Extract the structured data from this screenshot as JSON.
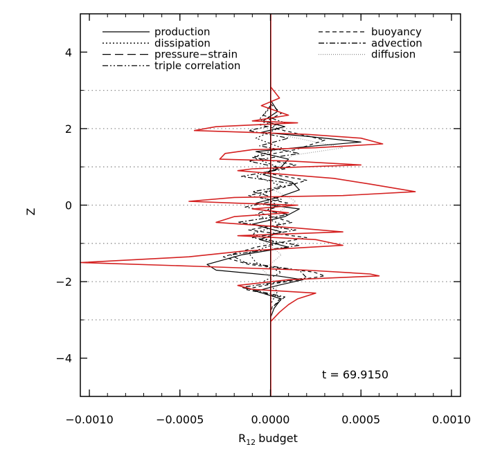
{
  "chart_data": {
    "type": "line",
    "title": "",
    "xlabel": "budget",
    "xlabel_prefix": "R",
    "xlabel_subscript": "12",
    "ylabel": "Z",
    "xlim": [
      -0.00105,
      0.00105
    ],
    "ylim": [
      -5,
      5
    ],
    "x_ticks": [
      -0.001,
      -0.0005,
      0.0,
      0.0005,
      0.001
    ],
    "x_tick_labels": [
      "−0.0010",
      "−0.0005",
      "0.0000",
      "0.0005",
      "0.0010"
    ],
    "y_ticks": [
      -4,
      -2,
      0,
      2,
      4
    ],
    "y_tick_labels": [
      "−4",
      "−2",
      "0",
      "2",
      "4"
    ],
    "reference_lines_y": [
      -3,
      -2,
      -1,
      0,
      1,
      2,
      3
    ],
    "annotation": "t = 69.9150",
    "legend_placement": "top",
    "legend": [
      {
        "label": "production",
        "style": "solid"
      },
      {
        "label": "dissipation",
        "style": "dotted"
      },
      {
        "label": "pressure−strain",
        "style": "longdash"
      },
      {
        "label": "triple correlation",
        "style": "dashdotdot"
      },
      {
        "label": "buoyancy",
        "style": "dashed"
      },
      {
        "label": "advection",
        "style": "dashdot"
      },
      {
        "label": "diffusion",
        "style": "finedot"
      }
    ],
    "total_color": "#d42020",
    "series": [
      {
        "name": "",
        "color": "#d42020",
        "points": [
          [
            0.0,
            3.1
          ],
          [
            5e-05,
            2.8
          ],
          [
            -5e-05,
            2.6
          ],
          [
            0.0001,
            2.35
          ],
          [
            -0.0001,
            2.2
          ],
          [
            0.00015,
            2.15
          ],
          [
            -0.0003,
            2.05
          ],
          [
            -0.00042,
            1.95
          ],
          [
            -0.0001,
            1.9
          ],
          [
            0.0002,
            1.85
          ],
          [
            0.0005,
            1.75
          ],
          [
            0.00062,
            1.6
          ],
          [
            0.00025,
            1.5
          ],
          [
            -0.0001,
            1.45
          ],
          [
            -0.00025,
            1.35
          ],
          [
            -0.00028,
            1.2
          ],
          [
            0.00012,
            1.15
          ],
          [
            0.0005,
            1.05
          ],
          [
            0.00018,
            1.0
          ],
          [
            -0.0001,
            0.95
          ],
          [
            -0.00018,
            0.9
          ],
          [
            0.00035,
            0.7
          ],
          [
            0.00055,
            0.55
          ],
          [
            0.0008,
            0.35
          ],
          [
            0.0004,
            0.25
          ],
          [
            -0.0002,
            0.2
          ],
          [
            -0.00045,
            0.1
          ],
          [
            -0.00018,
            0.05
          ],
          [
            0.00015,
            0.0
          ],
          [
            -0.0001,
            -0.1
          ],
          [
            0.0001,
            -0.2
          ],
          [
            -0.0002,
            -0.3
          ],
          [
            -0.0003,
            -0.45
          ],
          [
            0.00015,
            -0.6
          ],
          [
            0.0004,
            -0.7
          ],
          [
            -0.00018,
            -0.8
          ],
          [
            0.00025,
            -0.9
          ],
          [
            0.0004,
            -1.05
          ],
          [
            -0.00015,
            -1.2
          ],
          [
            -0.00045,
            -1.35
          ],
          [
            -0.00105,
            -1.5
          ],
          [
            -0.0004,
            -1.6
          ],
          [
            0.0002,
            -1.7
          ],
          [
            0.00055,
            -1.8
          ],
          [
            0.0006,
            -1.85
          ],
          [
            0.0001,
            -1.95
          ],
          [
            -0.00018,
            -2.1
          ],
          [
            -0.0001,
            -2.2
          ],
          [
            0.00025,
            -2.3
          ],
          [
            0.00015,
            -2.45
          ],
          [
            0.0001,
            -2.6
          ],
          [
            5e-05,
            -2.8
          ],
          [
            0.0,
            -3.05
          ]
        ]
      },
      {
        "name": "",
        "color": "#000000",
        "points": [
          [
            0.0,
            2.75
          ],
          [
            4e-05,
            2.45
          ],
          [
            -4e-05,
            2.2
          ],
          [
            8e-05,
            2.05
          ],
          [
            -5e-05,
            1.9
          ],
          [
            0.0002,
            1.8
          ],
          [
            0.0005,
            1.65
          ],
          [
            0.00025,
            1.55
          ],
          [
            -8e-05,
            1.4
          ],
          [
            0.0001,
            1.2
          ],
          [
            6e-05,
            1.0
          ],
          [
            -4e-05,
            0.8
          ],
          [
            0.00012,
            0.6
          ],
          [
            0.00016,
            0.4
          ],
          [
            4e-05,
            0.2
          ],
          [
            -8e-05,
            0.05
          ],
          [
            0.00016,
            -0.1
          ],
          [
            8e-05,
            -0.3
          ],
          [
            -0.0001,
            -0.5
          ],
          [
            6e-05,
            -0.7
          ],
          [
            -6e-05,
            -0.9
          ],
          [
            0.0001,
            -1.1
          ],
          [
            -0.00016,
            -1.3
          ],
          [
            -0.00035,
            -1.55
          ],
          [
            -0.0003,
            -1.7
          ],
          [
            4e-05,
            -1.85
          ],
          [
            0.00018,
            -1.95
          ],
          [
            4e-05,
            -2.1
          ],
          [
            -8e-05,
            -2.25
          ],
          [
            6e-05,
            -2.45
          ],
          [
            2e-05,
            -2.7
          ],
          [
            0.0,
            -2.95
          ]
        ]
      },
      {
        "name": "",
        "color": "#000000",
        "dash": "5,4",
        "points": [
          [
            0.0,
            2.65
          ],
          [
            6e-05,
            2.4
          ],
          [
            -6e-05,
            2.1
          ],
          [
            0.00012,
            1.9
          ],
          [
            0.0003,
            1.7
          ],
          [
            0.00014,
            1.45
          ],
          [
            -0.0001,
            1.25
          ],
          [
            0.00014,
            1.05
          ],
          [
            -4e-05,
            0.85
          ],
          [
            0.0002,
            0.65
          ],
          [
            6e-05,
            0.45
          ],
          [
            -0.00012,
            0.25
          ],
          [
            0.0001,
            0.05
          ],
          [
            -6e-05,
            -0.2
          ],
          [
            0.00012,
            -0.45
          ],
          [
            -0.00012,
            -0.65
          ],
          [
            0.0002,
            -0.85
          ],
          [
            -8e-05,
            -1.1
          ],
          [
            -0.00026,
            -1.35
          ],
          [
            -0.00012,
            -1.55
          ],
          [
            0.00024,
            -1.75
          ],
          [
            0.0003,
            -1.85
          ],
          [
            2e-05,
            -2.05
          ],
          [
            -0.00014,
            -2.2
          ],
          [
            6e-05,
            -2.4
          ],
          [
            0.0,
            -2.75
          ]
        ]
      },
      {
        "name": "",
        "color": "#000000",
        "dash": "7,3,2,3",
        "points": [
          [
            0.0,
            2.6
          ],
          [
            -4e-05,
            2.35
          ],
          [
            8e-05,
            2.15
          ],
          [
            -0.00012,
            1.95
          ],
          [
            0.0001,
            1.75
          ],
          [
            -6e-05,
            1.55
          ],
          [
            0.00016,
            1.35
          ],
          [
            -0.00012,
            1.15
          ],
          [
            8e-05,
            0.95
          ],
          [
            -0.00016,
            0.75
          ],
          [
            0.00014,
            0.55
          ],
          [
            -0.0001,
            0.35
          ],
          [
            6e-05,
            0.15
          ],
          [
            -0.00014,
            -0.05
          ],
          [
            0.0001,
            -0.25
          ],
          [
            -0.00018,
            -0.45
          ],
          [
            0.00014,
            -0.65
          ],
          [
            -0.0001,
            -0.85
          ],
          [
            0.00016,
            -1.05
          ],
          [
            -0.00022,
            -1.3
          ],
          [
            -0.00014,
            -1.5
          ],
          [
            0.00016,
            -1.7
          ],
          [
            0.0002,
            -1.9
          ],
          [
            -0.00016,
            -2.15
          ],
          [
            8e-05,
            -2.4
          ],
          [
            0.0,
            -2.7
          ]
        ]
      },
      {
        "name": "",
        "color": "#000000",
        "dash": "2,3",
        "points": [
          [
            0.0,
            2.55
          ],
          [
            -6e-05,
            2.25
          ],
          [
            4e-05,
            2.0
          ],
          [
            -8e-05,
            1.75
          ],
          [
            6e-05,
            1.5
          ],
          [
            -0.0001,
            1.25
          ],
          [
            4e-05,
            1.0
          ],
          [
            -8e-05,
            0.75
          ],
          [
            6e-05,
            0.5
          ],
          [
            -6e-05,
            0.25
          ],
          [
            4e-05,
            0.0
          ],
          [
            -8e-05,
            -0.25
          ],
          [
            6e-05,
            -0.5
          ],
          [
            -0.0001,
            -0.75
          ],
          [
            4e-05,
            -1.0
          ],
          [
            -0.00012,
            -1.25
          ],
          [
            -8e-05,
            -1.5
          ],
          [
            6e-05,
            -1.75
          ],
          [
            -4e-05,
            -2.0
          ],
          [
            4e-05,
            -2.25
          ],
          [
            0.0,
            -2.6
          ]
        ]
      },
      {
        "name": "",
        "color": "#999999",
        "dash": "1,2",
        "points": [
          [
            0.0,
            2.4
          ],
          [
            4e-05,
            2.1
          ],
          [
            0.0001,
            1.8
          ],
          [
            0.0004,
            1.5
          ],
          [
            0.00012,
            1.3
          ],
          [
            4e-05,
            1.0
          ],
          [
            6e-05,
            0.7
          ],
          [
            2e-05,
            0.4
          ],
          [
            0.00014,
            0.1
          ],
          [
            4e-05,
            -0.2
          ],
          [
            8e-05,
            -0.5
          ],
          [
            -4e-05,
            -0.9
          ],
          [
            6e-05,
            -1.3
          ],
          [
            -4e-05,
            -1.7
          ],
          [
            4e-05,
            -2.1
          ],
          [
            0.0,
            -2.5
          ]
        ]
      }
    ]
  }
}
